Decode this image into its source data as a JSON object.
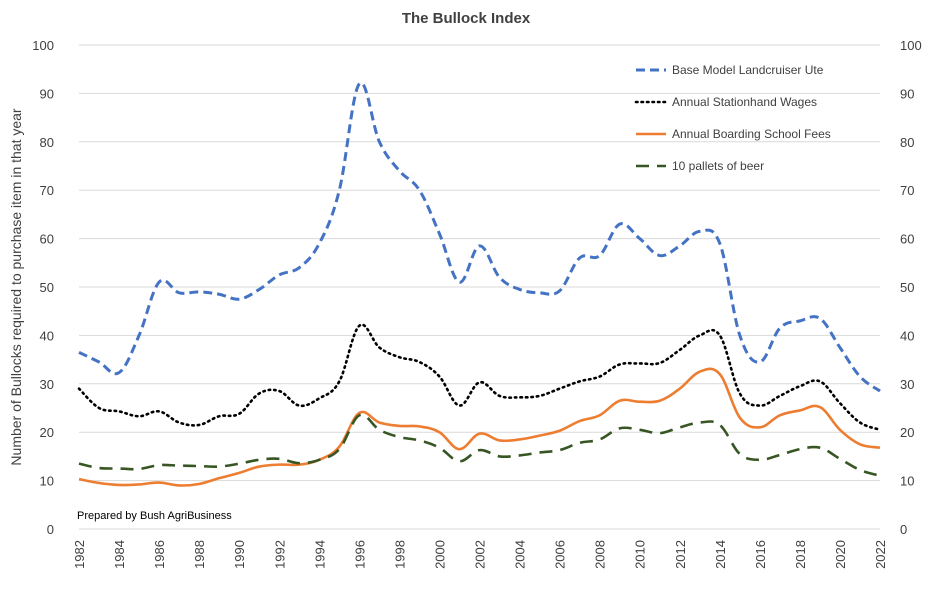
{
  "chart_data": {
    "type": "line",
    "title": "The Bullock Index",
    "ylabel": "Number of Bullocks required to purchase item in that year",
    "xlabel": "",
    "ylim": [
      0,
      100
    ],
    "yticks": [
      0,
      10,
      20,
      30,
      40,
      50,
      60,
      70,
      80,
      90,
      100
    ],
    "x_tick_labels": [
      "1982",
      "1984",
      "1986",
      "1988",
      "1990",
      "1992",
      "1994",
      "1996",
      "1998",
      "2000",
      "2002",
      "2004",
      "2006",
      "2008",
      "2010",
      "2012",
      "2014",
      "2016",
      "2018",
      "2020",
      "2022"
    ],
    "grid": true,
    "legend_position": "top-right",
    "annotation": "Prepared by Bush AgriBusiness",
    "series": [
      {
        "name": "Base Model Landcruiser Ute",
        "color": "#4472C4",
        "style": "dashed",
        "points": [
          [
            1982,
            36.5
          ],
          [
            1983,
            34.5
          ],
          [
            1984,
            32.3
          ],
          [
            1985,
            40
          ],
          [
            1986,
            51
          ],
          [
            1987,
            48.8
          ],
          [
            1988,
            49
          ],
          [
            1989,
            48.5
          ],
          [
            1990,
            47.5
          ],
          [
            1991,
            49.5
          ],
          [
            1992,
            52.5
          ],
          [
            1993,
            54
          ],
          [
            1994,
            59
          ],
          [
            1995,
            70
          ],
          [
            1996,
            92
          ],
          [
            1997,
            80
          ],
          [
            1998,
            74
          ],
          [
            1999,
            70
          ],
          [
            2000,
            61
          ],
          [
            2001,
            51
          ],
          [
            2002,
            58.5
          ],
          [
            2003,
            52
          ],
          [
            2004,
            49.5
          ],
          [
            2005,
            48.8
          ],
          [
            2006,
            49.2
          ],
          [
            2007,
            56
          ],
          [
            2008,
            56.5
          ],
          [
            2009,
            63
          ],
          [
            2010,
            60
          ],
          [
            2011,
            56.5
          ],
          [
            2012,
            58.5
          ],
          [
            2013,
            61.5
          ],
          [
            2014,
            59
          ],
          [
            2015,
            40
          ],
          [
            2016,
            34.5
          ],
          [
            2017,
            41.5
          ],
          [
            2018,
            43
          ],
          [
            2019,
            43.5
          ],
          [
            2020,
            37.5
          ],
          [
            2021,
            31.5
          ],
          [
            2022,
            28.5
          ]
        ]
      },
      {
        "name": "Annual Stationhand Wages",
        "color": "#000000",
        "style": "dotted",
        "points": [
          [
            1982,
            29
          ],
          [
            1983,
            25
          ],
          [
            1984,
            24.3
          ],
          [
            1985,
            23.3
          ],
          [
            1986,
            24.3
          ],
          [
            1987,
            22
          ],
          [
            1988,
            21.5
          ],
          [
            1989,
            23.3
          ],
          [
            1990,
            23.8
          ],
          [
            1991,
            28
          ],
          [
            1992,
            28.5
          ],
          [
            1993,
            25.5
          ],
          [
            1994,
            27
          ],
          [
            1995,
            30.5
          ],
          [
            1996,
            42
          ],
          [
            1997,
            37.5
          ],
          [
            1998,
            35.5
          ],
          [
            1999,
            34.5
          ],
          [
            2000,
            31.5
          ],
          [
            2001,
            25.5
          ],
          [
            2002,
            30.3
          ],
          [
            2003,
            27.5
          ],
          [
            2004,
            27.2
          ],
          [
            2005,
            27.5
          ],
          [
            2006,
            29
          ],
          [
            2007,
            30.5
          ],
          [
            2008,
            31.5
          ],
          [
            2009,
            34
          ],
          [
            2010,
            34.2
          ],
          [
            2011,
            34.3
          ],
          [
            2012,
            37
          ],
          [
            2013,
            40
          ],
          [
            2014,
            40
          ],
          [
            2015,
            28
          ],
          [
            2016,
            25.5
          ],
          [
            2017,
            27.5
          ],
          [
            2018,
            29.5
          ],
          [
            2019,
            30.5
          ],
          [
            2020,
            26
          ],
          [
            2021,
            22
          ],
          [
            2022,
            20.5
          ]
        ]
      },
      {
        "name": "Annual Boarding School Fees",
        "color": "#ED7D31",
        "style": "solid",
        "points": [
          [
            1982,
            10.3
          ],
          [
            1983,
            9.5
          ],
          [
            1984,
            9.1
          ],
          [
            1985,
            9.2
          ],
          [
            1986,
            9.6
          ],
          [
            1987,
            9
          ],
          [
            1988,
            9.3
          ],
          [
            1989,
            10.5
          ],
          [
            1990,
            11.6
          ],
          [
            1991,
            12.9
          ],
          [
            1992,
            13.3
          ],
          [
            1993,
            13.3
          ],
          [
            1994,
            14.3
          ],
          [
            1995,
            17
          ],
          [
            1996,
            24
          ],
          [
            1997,
            22
          ],
          [
            1998,
            21.3
          ],
          [
            1999,
            21.2
          ],
          [
            2000,
            20
          ],
          [
            2001,
            16.5
          ],
          [
            2002,
            19.7
          ],
          [
            2003,
            18.3
          ],
          [
            2004,
            18.5
          ],
          [
            2005,
            19.3
          ],
          [
            2006,
            20.3
          ],
          [
            2007,
            22.3
          ],
          [
            2008,
            23.5
          ],
          [
            2009,
            26.5
          ],
          [
            2010,
            26.3
          ],
          [
            2011,
            26.5
          ],
          [
            2012,
            29
          ],
          [
            2013,
            32.5
          ],
          [
            2014,
            32
          ],
          [
            2015,
            23
          ],
          [
            2016,
            21
          ],
          [
            2017,
            23.5
          ],
          [
            2018,
            24.5
          ],
          [
            2019,
            25.2
          ],
          [
            2020,
            20.5
          ],
          [
            2021,
            17.5
          ],
          [
            2022,
            16.8
          ]
        ]
      },
      {
        "name": "10 pallets of beer",
        "color": "#375623",
        "style": "longdash",
        "points": [
          [
            1982,
            13.5
          ],
          [
            1983,
            12.6
          ],
          [
            1984,
            12.5
          ],
          [
            1985,
            12.4
          ],
          [
            1986,
            13.2
          ],
          [
            1987,
            13.1
          ],
          [
            1988,
            13
          ],
          [
            1989,
            12.9
          ],
          [
            1990,
            13.5
          ],
          [
            1991,
            14.3
          ],
          [
            1992,
            14.5
          ],
          [
            1993,
            13.6
          ],
          [
            1994,
            14.3
          ],
          [
            1995,
            16.5
          ],
          [
            1996,
            23.5
          ],
          [
            1997,
            20.5
          ],
          [
            1998,
            19
          ],
          [
            1999,
            18.3
          ],
          [
            2000,
            16.8
          ],
          [
            2001,
            14
          ],
          [
            2002,
            16.3
          ],
          [
            2003,
            15
          ],
          [
            2004,
            15.2
          ],
          [
            2005,
            15.8
          ],
          [
            2006,
            16.3
          ],
          [
            2007,
            17.8
          ],
          [
            2008,
            18.5
          ],
          [
            2009,
            20.8
          ],
          [
            2010,
            20.5
          ],
          [
            2011,
            19.8
          ],
          [
            2012,
            21
          ],
          [
            2013,
            22
          ],
          [
            2014,
            21.5
          ],
          [
            2015,
            15.5
          ],
          [
            2016,
            14.3
          ],
          [
            2017,
            15.3
          ],
          [
            2018,
            16.5
          ],
          [
            2019,
            16.8
          ],
          [
            2020,
            14.5
          ],
          [
            2021,
            12.2
          ],
          [
            2022,
            11
          ]
        ]
      }
    ]
  }
}
